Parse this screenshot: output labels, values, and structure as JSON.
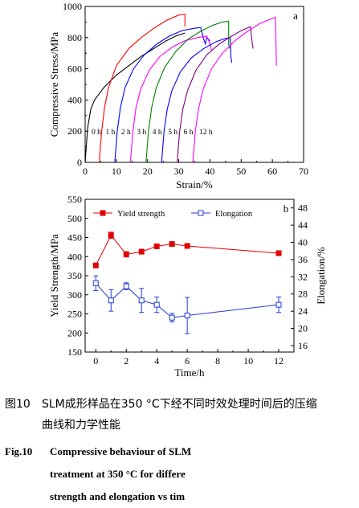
{
  "chart_data": [
    {
      "type": "line",
      "panel": "a",
      "xlabel": "Strain/%",
      "ylabel": "Compressive Stress/MPa",
      "xlim": [
        0,
        70
      ],
      "ylim": [
        0,
        1000
      ],
      "xticks": [
        0,
        10,
        20,
        30,
        40,
        50,
        60,
        70
      ],
      "yticks": [
        0,
        200,
        400,
        600,
        800,
        1000
      ],
      "grid": false,
      "series": [
        {
          "name": "0 h",
          "color": "#000000",
          "points": [
            [
              0,
              0
            ],
            [
              0.8,
              220
            ],
            [
              1.8,
              340
            ],
            [
              3,
              400
            ],
            [
              6,
              480
            ],
            [
              10,
              560
            ],
            [
              14,
              620
            ],
            [
              18,
              680
            ],
            [
              22,
              730
            ],
            [
              26,
              780
            ],
            [
              29,
              810
            ],
            [
              32,
              830
            ]
          ]
        },
        {
          "name": "1 h",
          "color": "#ff0000",
          "points": [
            [
              4.5,
              0
            ],
            [
              5.3,
              200
            ],
            [
              6.2,
              350
            ],
            [
              7.5,
              480
            ],
            [
              10,
              620
            ],
            [
              14,
              730
            ],
            [
              18,
              800
            ],
            [
              22,
              860
            ],
            [
              26,
              910
            ],
            [
              30,
              945
            ],
            [
              32,
              950
            ],
            [
              32,
              870
            ]
          ]
        },
        {
          "name": "2 h",
          "color": "#0000ff",
          "points": [
            [
              9.5,
              0
            ],
            [
              10.3,
              200
            ],
            [
              11.3,
              350
            ],
            [
              12.8,
              480
            ],
            [
              15.5,
              600
            ],
            [
              19,
              690
            ],
            [
              23,
              760
            ],
            [
              27,
              810
            ],
            [
              31,
              845
            ],
            [
              35,
              860
            ],
            [
              37,
              865
            ],
            [
              38,
              790
            ],
            [
              38.5,
              760
            ],
            [
              39,
              800
            ],
            [
              40,
              780
            ]
          ]
        },
        {
          "name": "3 h",
          "color": "#ff00ff",
          "points": [
            [
              14.5,
              0
            ],
            [
              15.3,
              200
            ],
            [
              16.3,
              350
            ],
            [
              17.8,
              470
            ],
            [
              20.5,
              590
            ],
            [
              24,
              680
            ],
            [
              28,
              740
            ],
            [
              32,
              780
            ],
            [
              36,
              800
            ],
            [
              39,
              810
            ],
            [
              40,
              760
            ],
            [
              40.5,
              720
            ]
          ]
        },
        {
          "name": "4 h",
          "color": "#008000",
          "points": [
            [
              19.5,
              0
            ],
            [
              20.3,
              200
            ],
            [
              21.3,
              350
            ],
            [
              22.8,
              480
            ],
            [
              25.5,
              610
            ],
            [
              29,
              710
            ],
            [
              33,
              790
            ],
            [
              37,
              840
            ],
            [
              41,
              880
            ],
            [
              44,
              900
            ],
            [
              46,
              905
            ],
            [
              46,
              760
            ],
            [
              46.3,
              730
            ]
          ]
        },
        {
          "name": "5 h",
          "color": "#0000ff",
          "points": [
            [
              24.5,
              0
            ],
            [
              25.3,
              200
            ],
            [
              26.3,
              340
            ],
            [
              27.8,
              460
            ],
            [
              30.5,
              580
            ],
            [
              34,
              670
            ],
            [
              38,
              730
            ],
            [
              42,
              775
            ],
            [
              45,
              795
            ],
            [
              46.5,
              800
            ],
            [
              46.7,
              680
            ],
            [
              47,
              640
            ]
          ]
        },
        {
          "name": "6 h",
          "color": "#800080",
          "points": [
            [
              29.5,
              0
            ],
            [
              30.3,
              200
            ],
            [
              31.3,
              340
            ],
            [
              32.8,
              460
            ],
            [
              35.5,
              590
            ],
            [
              39,
              690
            ],
            [
              43,
              760
            ],
            [
              47,
              810
            ],
            [
              50,
              845
            ],
            [
              53,
              870
            ],
            [
              53.5,
              770
            ],
            [
              53.8,
              730
            ]
          ]
        },
        {
          "name": "12 h",
          "color": "#ff00ff",
          "points": [
            [
              34.5,
              0
            ],
            [
              35.3,
              200
            ],
            [
              36.3,
              340
            ],
            [
              37.8,
              470
            ],
            [
              40.5,
              600
            ],
            [
              44,
              700
            ],
            [
              48,
              780
            ],
            [
              52,
              840
            ],
            [
              56,
              890
            ],
            [
              59,
              915
            ],
            [
              61,
              930
            ],
            [
              61.3,
              620
            ]
          ]
        }
      ],
      "curve_labels": [
        "0 h",
        "1 h",
        "2 h",
        "3 h",
        "4 h",
        "5 h",
        "6 h",
        "12 h"
      ]
    },
    {
      "type": "line",
      "panel": "b",
      "xlabel": "Time/h",
      "ylabel": "Yield Strength/MPa",
      "ylabel_right": "Elongation/%",
      "x": [
        0,
        1,
        2,
        3,
        4,
        5,
        6,
        12
      ],
      "xlim": [
        -0.7,
        13
      ],
      "ylim": [
        150,
        550
      ],
      "ylim_right": [
        14.5,
        50
      ],
      "xticks": [
        0,
        2,
        4,
        6,
        8,
        10,
        12
      ],
      "yticks": [
        150,
        200,
        250,
        300,
        350,
        400,
        450,
        500,
        550
      ],
      "yticks_right": [
        16,
        20,
        24,
        28,
        32,
        36,
        40,
        44,
        48
      ],
      "legend": "top-left",
      "grid": false,
      "series": [
        {
          "name": "Yield strength",
          "axis": "left",
          "color": "#e00000",
          "marker": "filled-square",
          "values": [
            377,
            456,
            406,
            413,
            427,
            433,
            428,
            409
          ],
          "errors": [
            4,
            8,
            7,
            5,
            3,
            3,
            6,
            5
          ]
        },
        {
          "name": "Elongation",
          "axis": "right",
          "color": "#1f3ad6",
          "marker": "open-square",
          "values": [
            30.5,
            26.5,
            29.8,
            26.5,
            25.5,
            22.5,
            23.0,
            25.5
          ],
          "errors": [
            1.7,
            2.5,
            0.8,
            2.8,
            1.8,
            1.0,
            4.2,
            1.8
          ]
        }
      ]
    }
  ],
  "caption": {
    "cn_num": "图10",
    "cn_line1": "SLM成形样品在350 °C下经不同时效处理时间后的压缩",
    "cn_line2": "曲线和力学性能",
    "en_num": "Fig.10",
    "en_line1": "Compressive behaviour of SLM",
    "en_line2": "treatment at 350 °C for differe",
    "en_line3": "strength and elongation  vs tim"
  }
}
